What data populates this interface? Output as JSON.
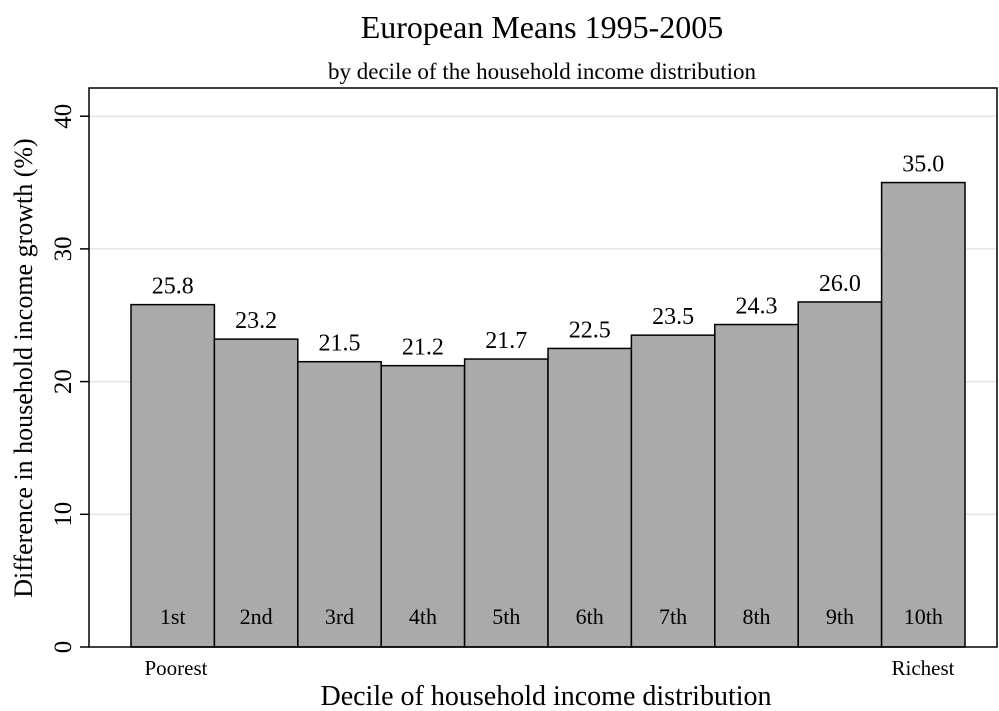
{
  "chart_data": {
    "type": "bar",
    "title": "European Means 1995-2005",
    "subtitle": "by decile of the household income distribution",
    "xlabel": "Decile of household income distribution",
    "ylabel": "Difference in household income growth (%)",
    "categories": [
      "1st",
      "2nd",
      "3rd",
      "4th",
      "5th",
      "6th",
      "7th",
      "8th",
      "9th",
      "10th"
    ],
    "values": [
      25.8,
      23.2,
      21.5,
      21.2,
      21.7,
      22.5,
      23.5,
      24.3,
      26.0,
      35.0
    ],
    "value_labels": [
      "25.8",
      "23.2",
      "21.5",
      "21.2",
      "21.7",
      "22.5",
      "23.5",
      "24.3",
      "26.0",
      "35.0"
    ],
    "ylim": [
      0,
      40
    ],
    "yticks": [
      0,
      10,
      20,
      30,
      40
    ],
    "x_end_labels": {
      "left": "Poorest",
      "right": "Richest"
    },
    "grid": true,
    "bar_color": "#aaaaaa",
    "bar_edge_color": "#000000",
    "grid_color": "#e4e4e4"
  }
}
